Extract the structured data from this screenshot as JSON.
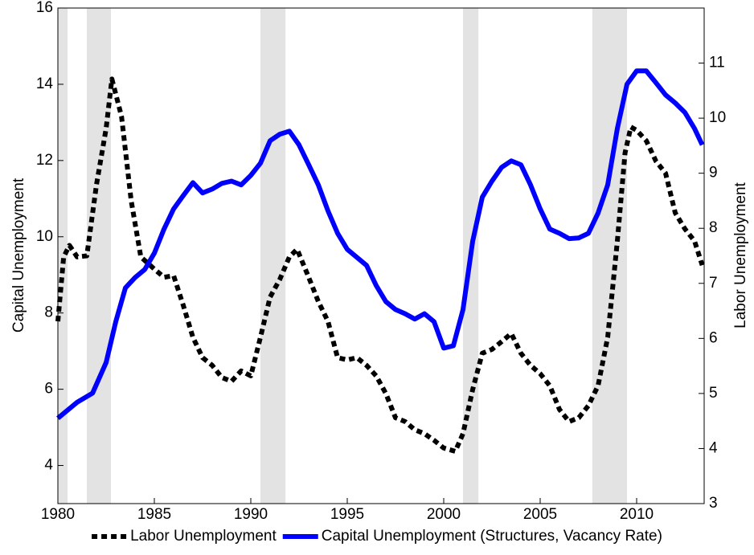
{
  "chart_data": {
    "type": "line",
    "xlabel": null,
    "ylabel": "Capital Unemployment",
    "y2label": "Labor Unemployment",
    "xlim": [
      1980,
      2013.5
    ],
    "xticks": [
      1980,
      1985,
      1990,
      1995,
      2000,
      2005,
      2010
    ],
    "ylim": [
      3,
      16
    ],
    "yticks": [
      4,
      6,
      8,
      10,
      12,
      14,
      16
    ],
    "y2lim": [
      3,
      12
    ],
    "y2ticks": [
      3,
      4,
      5,
      6,
      7,
      8,
      9,
      10,
      11
    ],
    "grid": false,
    "legend": "bottom",
    "shaded_color": "#e3e3e3",
    "shaded_periods": [
      [
        1980.0,
        1980.5
      ],
      [
        1981.5,
        1982.75
      ],
      [
        1990.5,
        1991.8
      ],
      [
        2001.0,
        2001.8
      ],
      [
        2007.7,
        2009.5
      ]
    ],
    "series": [
      {
        "name": "Labor Unemployment",
        "color": "#000000",
        "dashed": true,
        "axis": "y2",
        "x": [
          1980,
          1980.3,
          1980.6,
          1981,
          1981.5,
          1982,
          1982.5,
          1982.8,
          1983.3,
          1983.8,
          1984.3,
          1985,
          1985.5,
          1986,
          1986.5,
          1987,
          1987.5,
          1988,
          1988.5,
          1989,
          1989.5,
          1990,
          1990.5,
          1991,
          1991.5,
          1992,
          1992.4,
          1993,
          1993.5,
          1994,
          1994.5,
          1995,
          1995.5,
          1996,
          1996.5,
          1997,
          1997.5,
          1998,
          1998.5,
          1999,
          1999.5,
          2000,
          2000.6,
          2001,
          2001.5,
          2002,
          2002.5,
          2003,
          2003.5,
          2004,
          2004.5,
          2005,
          2005.5,
          2006,
          2006.5,
          2007,
          2007.5,
          2008,
          2008.5,
          2009,
          2009.4,
          2009.7,
          2010,
          2010.5,
          2011,
          2011.5,
          2012,
          2012.5,
          2013,
          2013.4
        ],
        "values": [
          6.31,
          7.48,
          7.69,
          7.48,
          7.5,
          8.79,
          9.81,
          10.71,
          10.03,
          8.5,
          7.48,
          7.26,
          7.11,
          7.14,
          6.6,
          6.02,
          5.65,
          5.51,
          5.29,
          5.22,
          5.41,
          5.32,
          6.02,
          6.75,
          7.07,
          7.48,
          7.62,
          7.11,
          6.67,
          6.31,
          5.65,
          5.61,
          5.65,
          5.51,
          5.32,
          5.0,
          4.56,
          4.49,
          4.34,
          4.27,
          4.15,
          4.01,
          3.95,
          4.27,
          5.07,
          5.73,
          5.8,
          5.94,
          6.09,
          5.73,
          5.51,
          5.36,
          5.14,
          4.71,
          4.49,
          4.56,
          4.78,
          5.14,
          6.02,
          7.77,
          9.37,
          9.84,
          9.78,
          9.59,
          9.22,
          9.0,
          8.28,
          7.99,
          7.77,
          7.33
        ]
      },
      {
        "name": "Capital Unemployment (Structures, Vacancy Rate)",
        "color": "#0000ff",
        "dashed": false,
        "axis": "y",
        "x": [
          1980,
          1981,
          1981.8,
          1982.5,
          1983,
          1983.5,
          1984,
          1984.5,
          1985,
          1985.5,
          1986,
          1986.5,
          1987,
          1987.5,
          1988,
          1988.5,
          1989,
          1989.5,
          1990,
          1990.5,
          1991,
          1991.5,
          1992,
          1992.5,
          1993,
          1993.5,
          1994,
          1994.5,
          1995,
          1995.5,
          1996,
          1996.5,
          1997,
          1997.5,
          1998,
          1998.5,
          1999,
          1999.5,
          2000,
          2000.5,
          2001,
          2001.5,
          2002,
          2002.5,
          2003,
          2003.5,
          2004,
          2004.5,
          2005,
          2005.5,
          2006,
          2006.5,
          2007,
          2007.5,
          2008,
          2008.5,
          2009,
          2009.5,
          2010,
          2010.5,
          2011,
          2011.5,
          2012,
          2012.5,
          2013,
          2013.4
        ],
        "values": [
          5.24,
          5.66,
          5.9,
          6.7,
          7.77,
          8.66,
          8.93,
          9.14,
          9.57,
          10.2,
          10.73,
          11.08,
          11.42,
          11.15,
          11.25,
          11.4,
          11.46,
          11.36,
          11.61,
          11.93,
          12.52,
          12.69,
          12.77,
          12.41,
          11.89,
          11.36,
          10.68,
          10.09,
          9.67,
          9.46,
          9.25,
          8.72,
          8.3,
          8.09,
          7.98,
          7.84,
          7.98,
          7.77,
          7.08,
          7.14,
          8.09,
          9.88,
          11.04,
          11.46,
          11.82,
          11.99,
          11.89,
          11.36,
          10.73,
          10.2,
          10.09,
          9.95,
          9.97,
          10.09,
          10.62,
          11.36,
          12.84,
          14.0,
          14.35,
          14.35,
          14.04,
          13.72,
          13.51,
          13.26,
          12.84,
          12.41
        ]
      }
    ]
  }
}
